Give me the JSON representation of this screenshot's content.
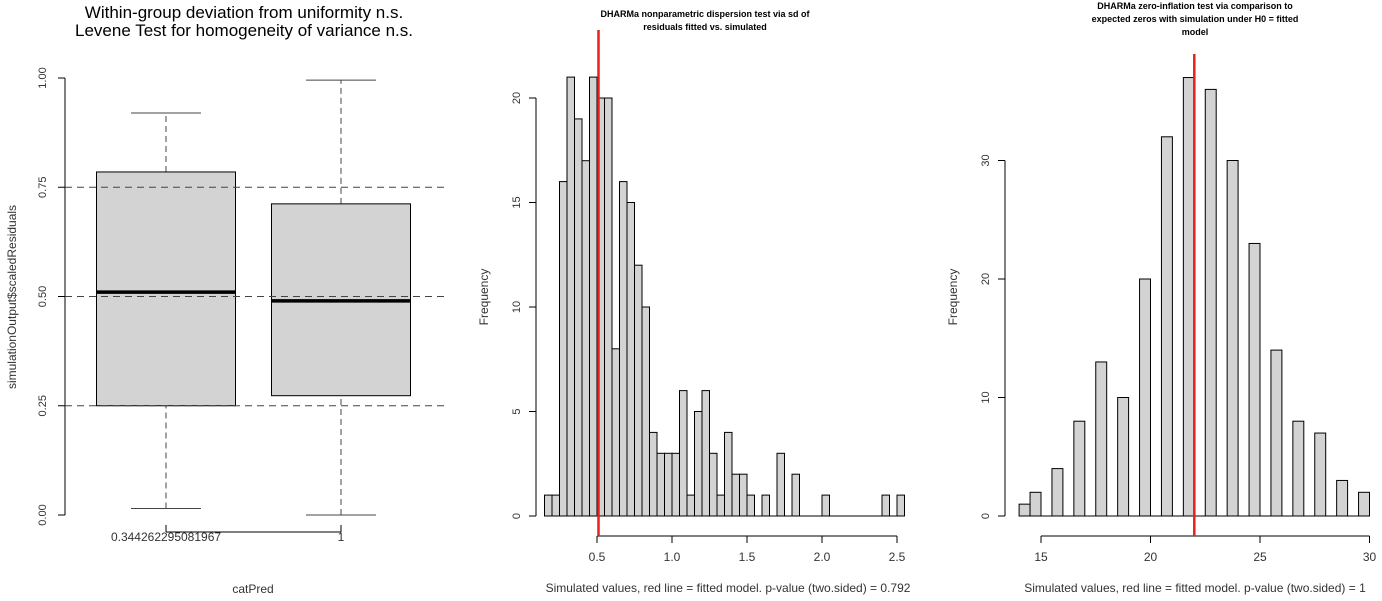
{
  "chart_data": [
    {
      "type": "boxplot",
      "title": [
        "Within-group deviation from uniformity n.s.",
        "Levene Test for homogeneity of variance n.s."
      ],
      "xlabel": "catPred",
      "ylabel": "simulationOutput$scaledResiduals",
      "ylim": [
        0,
        1
      ],
      "yticks": [
        "0.00",
        "0.25",
        "0.50",
        "0.75",
        "1.00"
      ],
      "reference_lines": [
        0.25,
        0.5,
        0.75
      ],
      "categories": [
        "0.344262295081967",
        "1"
      ],
      "boxes": [
        {
          "min": 0.015,
          "q1": 0.25,
          "median": 0.51,
          "q3": 0.785,
          "max": 0.92
        },
        {
          "min": 0.0,
          "q1": 0.273,
          "median": 0.49,
          "q3": 0.712,
          "max": 0.995
        }
      ],
      "fill": "#d3d3d3"
    },
    {
      "type": "bar",
      "subtype": "histogram",
      "title": [
        "DHARMa nonparametric dispersion test via sd of",
        "residuals fitted vs. simulated"
      ],
      "xlabel": "Simulated values, red line = fitted model. p-value (two.sided) = 0.792",
      "ylabel": "Frequency",
      "bin_start": 0.15,
      "bin_width": 0.05,
      "counts": [
        1,
        1,
        16,
        21,
        19,
        17,
        21,
        20,
        20,
        8,
        16,
        15,
        12,
        10,
        4,
        3,
        3,
        3,
        6,
        1,
        5,
        6,
        3,
        1,
        4,
        2,
        2,
        1,
        0,
        1,
        0,
        3,
        0,
        2,
        0,
        0,
        0,
        1,
        0,
        0,
        0,
        0,
        0,
        0,
        0,
        1,
        0,
        1
      ],
      "xticks": [
        "0.5",
        "1.0",
        "1.5",
        "2.0",
        "2.5"
      ],
      "yticks": [
        "0",
        "5",
        "10",
        "15",
        "20"
      ],
      "ylim": [
        0,
        21
      ],
      "fitted_value": 0.51,
      "line_color": "#e8211a",
      "fill": "#d3d3d3"
    },
    {
      "type": "bar",
      "subtype": "histogram",
      "title": [
        "DHARMa zero-inflation test via comparison to",
        "expected zeros with simulation under H0 = fitted",
        "model"
      ],
      "xlabel": "Simulated values, red line = fitted model. p-value (two.sided) = 1",
      "ylabel": "Frequency",
      "bin_start": 14,
      "bin_width": 0.5,
      "counts": [
        1,
        2,
        0,
        4,
        0,
        8,
        0,
        13,
        0,
        10,
        0,
        20,
        0,
        32,
        0,
        37,
        0,
        36,
        0,
        30,
        0,
        23,
        0,
        14,
        0,
        8,
        0,
        7,
        0,
        3,
        0,
        2
      ],
      "xticks": [
        "15",
        "20",
        "25",
        "30"
      ],
      "yticks": [
        "0",
        "10",
        "20",
        "30"
      ],
      "ylim": [
        0,
        37
      ],
      "fitted_value": 22,
      "line_color": "#e8211a",
      "fill": "#d3d3d3"
    }
  ]
}
